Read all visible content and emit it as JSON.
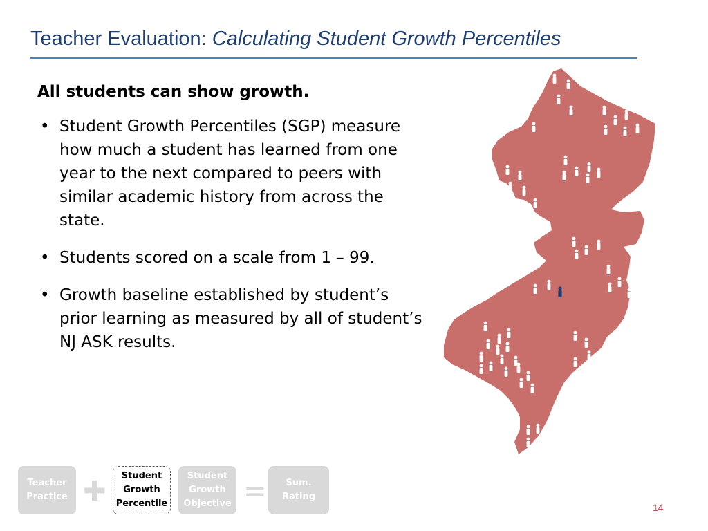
{
  "slide": {
    "title_plain": "Teacher Evaluation: ",
    "title_italic": "Calculating Student Growth Percentiles",
    "heading": "All students can show growth.",
    "bullets": [
      "Student Growth Percentiles (SGP) measure how much a student has learned from one year to the next compared to peers with similar academic history from across the state.",
      "Students scored on a scale from 1 – 99.",
      "Growth baseline established by student’s prior learning as measured by all of student’s NJ ASK results."
    ],
    "bullet_marker": "•",
    "page_number": "14"
  },
  "formula": {
    "teacher_practice": "Teacher Practice",
    "plus": "✚",
    "sgp": "Student Growth Percentile",
    "sgo": "Student Growth Objective",
    "equals": "=",
    "summative": "Sum. Rating"
  },
  "colors": {
    "title": "#1f3f73",
    "rule": "#4f81bd",
    "map_fill": "#c96f6b",
    "figure_white": "#ffffff",
    "figure_highlight": "#1f3f73",
    "inactive_box": "#d9d9d9",
    "page_number": "#c0504d"
  }
}
